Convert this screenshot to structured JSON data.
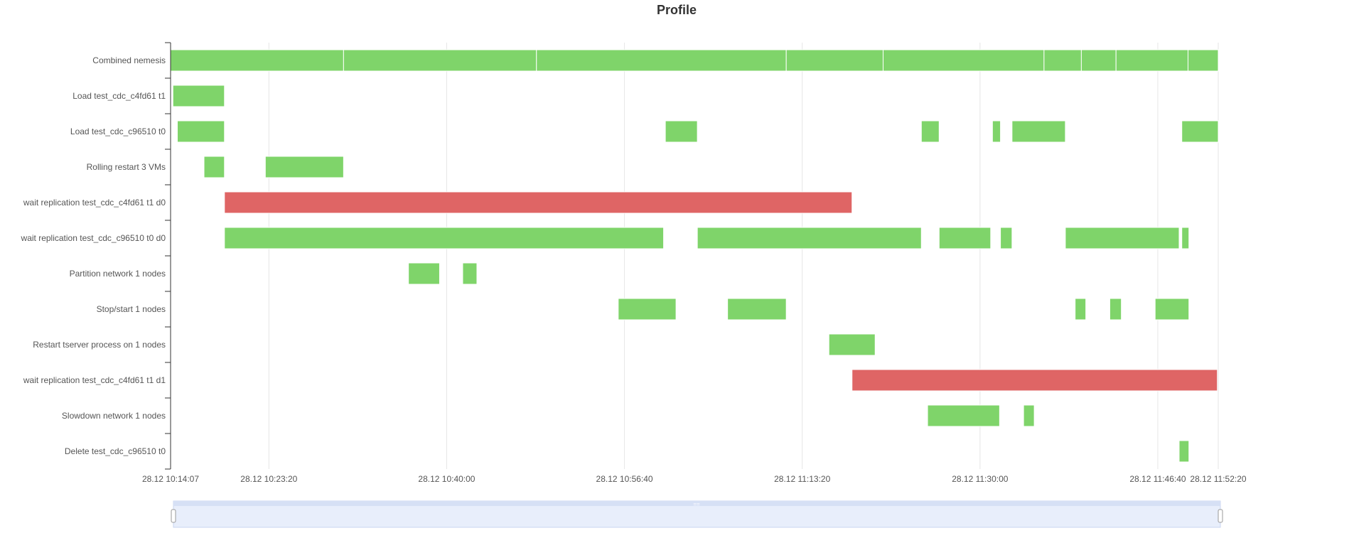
{
  "chart_data": {
    "type": "gantt",
    "title": "Profile",
    "categories": [
      "Combined nemesis",
      "Load test_cdc_c4fd61 t1",
      "Load test_cdc_c96510 t0",
      "Rolling restart 3 VMs",
      "wait replication test_cdc_c4fd61 t1 d0",
      "wait replication test_cdc_c96510 t0 d0",
      "Partition network 1 nodes",
      "Stop/start 1 nodes",
      "Restart tserver process on 1 nodes",
      "wait replication test_cdc_c4fd61 t1 d1",
      "Slowdown network 1 nodes",
      "Delete test_cdc_c96510 t0"
    ],
    "x_ticks": [
      {
        "label": "28.12 10:14:07",
        "t": "10:14:07"
      },
      {
        "label": "28.12 10:23:20",
        "t": "10:23:20"
      },
      {
        "label": "28.12 10:40:00",
        "t": "10:40:00"
      },
      {
        "label": "28.12 10:56:40",
        "t": "10:56:40"
      },
      {
        "label": "28.12 11:13:20",
        "t": "11:13:20"
      },
      {
        "label": "28.12 11:30:00",
        "t": "11:30:00"
      },
      {
        "label": "28.12 11:46:40",
        "t": "11:46:40"
      },
      {
        "label": "28.12 11:52:20",
        "t": "11:52:20"
      }
    ],
    "xlim": [
      "10:14:07",
      "11:52:20"
    ],
    "grid": true,
    "colors": {
      "ok": "#7fd46a",
      "error": "#df6565"
    },
    "segments": [
      {
        "row": 0,
        "start": "10:14:07",
        "end": "10:30:20",
        "status": "ok"
      },
      {
        "row": 0,
        "start": "10:30:20",
        "end": "10:48:25",
        "status": "ok"
      },
      {
        "row": 0,
        "start": "10:48:25",
        "end": "11:11:50",
        "status": "ok"
      },
      {
        "row": 0,
        "start": "11:11:50",
        "end": "11:20:55",
        "status": "ok"
      },
      {
        "row": 0,
        "start": "11:20:55",
        "end": "11:36:00",
        "status": "ok"
      },
      {
        "row": 0,
        "start": "11:36:00",
        "end": "11:39:30",
        "status": "ok"
      },
      {
        "row": 0,
        "start": "11:39:30",
        "end": "11:42:45",
        "status": "ok"
      },
      {
        "row": 0,
        "start": "11:42:45",
        "end": "11:49:30",
        "status": "ok"
      },
      {
        "row": 0,
        "start": "11:49:30",
        "end": "11:52:20",
        "status": "ok"
      },
      {
        "row": 1,
        "start": "10:14:20",
        "end": "10:19:10",
        "status": "ok"
      },
      {
        "row": 2,
        "start": "10:14:45",
        "end": "10:19:10",
        "status": "ok"
      },
      {
        "row": 2,
        "start": "11:00:30",
        "end": "11:03:30",
        "status": "ok"
      },
      {
        "row": 2,
        "start": "11:24:30",
        "end": "11:26:10",
        "status": "ok"
      },
      {
        "row": 2,
        "start": "11:31:10",
        "end": "11:31:55",
        "status": "ok"
      },
      {
        "row": 2,
        "start": "11:33:00",
        "end": "11:38:00",
        "status": "ok"
      },
      {
        "row": 2,
        "start": "11:48:55",
        "end": "11:52:20",
        "status": "ok"
      },
      {
        "row": 3,
        "start": "10:17:15",
        "end": "10:19:10",
        "status": "ok"
      },
      {
        "row": 3,
        "start": "10:23:00",
        "end": "10:30:20",
        "status": "ok"
      },
      {
        "row": 4,
        "start": "10:19:10",
        "end": "11:18:00",
        "status": "error"
      },
      {
        "row": 5,
        "start": "10:19:10",
        "end": "11:00:20",
        "status": "ok"
      },
      {
        "row": 5,
        "start": "11:03:30",
        "end": "11:24:30",
        "status": "ok"
      },
      {
        "row": 5,
        "start": "11:26:10",
        "end": "11:31:00",
        "status": "ok"
      },
      {
        "row": 5,
        "start": "11:31:55",
        "end": "11:33:00",
        "status": "ok"
      },
      {
        "row": 5,
        "start": "11:38:00",
        "end": "11:48:40",
        "status": "ok"
      },
      {
        "row": 5,
        "start": "11:48:55",
        "end": "11:49:35",
        "status": "ok"
      },
      {
        "row": 6,
        "start": "10:36:25",
        "end": "10:39:20",
        "status": "ok"
      },
      {
        "row": 6,
        "start": "10:41:30",
        "end": "10:42:50",
        "status": "ok"
      },
      {
        "row": 7,
        "start": "10:56:05",
        "end": "11:01:30",
        "status": "ok"
      },
      {
        "row": 7,
        "start": "11:06:20",
        "end": "11:11:50",
        "status": "ok"
      },
      {
        "row": 7,
        "start": "11:38:55",
        "end": "11:39:55",
        "status": "ok"
      },
      {
        "row": 7,
        "start": "11:42:10",
        "end": "11:43:15",
        "status": "ok"
      },
      {
        "row": 7,
        "start": "11:46:25",
        "end": "11:49:35",
        "status": "ok"
      },
      {
        "row": 8,
        "start": "11:15:50",
        "end": "11:20:10",
        "status": "ok"
      },
      {
        "row": 9,
        "start": "11:18:00",
        "end": "11:52:15",
        "status": "error"
      },
      {
        "row": 10,
        "start": "11:25:05",
        "end": "11:31:50",
        "status": "ok"
      },
      {
        "row": 10,
        "start": "11:34:05",
        "end": "11:35:05",
        "status": "ok"
      },
      {
        "row": 11,
        "start": "11:48:40",
        "end": "11:49:35",
        "status": "ok"
      }
    ]
  }
}
